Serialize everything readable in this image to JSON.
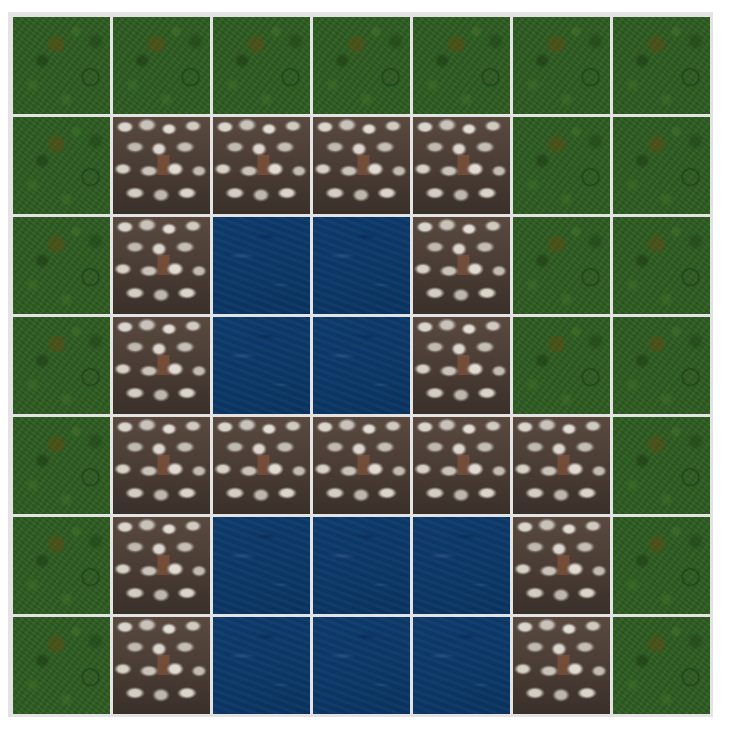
{
  "board": {
    "columns": 7,
    "rows": 7,
    "tile_types": [
      "grass",
      "stone",
      "water"
    ],
    "grid": [
      [
        "grass",
        "grass",
        "grass",
        "grass",
        "grass",
        "grass",
        "grass"
      ],
      [
        "grass",
        "stone",
        "stone",
        "stone",
        "stone",
        "grass",
        "grass"
      ],
      [
        "grass",
        "stone",
        "water",
        "water",
        "stone",
        "grass",
        "grass"
      ],
      [
        "grass",
        "stone",
        "water",
        "water",
        "stone",
        "grass",
        "grass"
      ],
      [
        "grass",
        "stone",
        "stone",
        "stone",
        "stone",
        "stone",
        "grass"
      ],
      [
        "grass",
        "stone",
        "water",
        "water",
        "water",
        "stone",
        "grass"
      ],
      [
        "grass",
        "stone",
        "water",
        "water",
        "water",
        "stone",
        "grass"
      ]
    ],
    "colors": {
      "grid_line": "#e3e3e3",
      "grass": "#2e5c22",
      "stone": "#5a5048",
      "water": "#0b3766"
    }
  }
}
